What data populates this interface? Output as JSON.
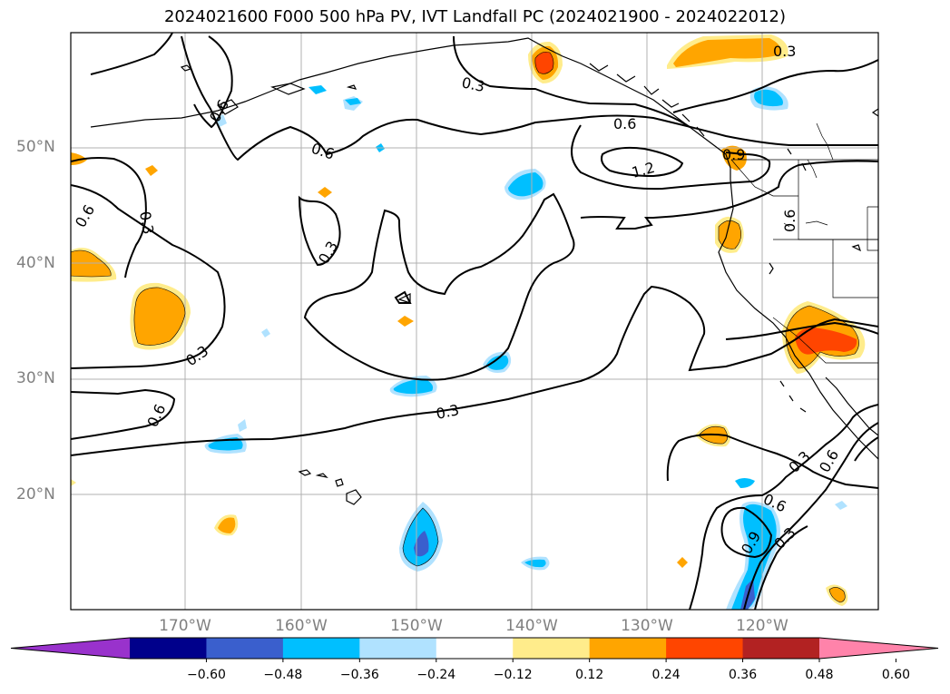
{
  "title": "2024021600 F000 500 hPa PV, IVT Landfall PC (2024021900 - 2024022012)",
  "map": {
    "lat_ticks": [
      "50°N",
      "40°N",
      "30°N",
      "20°N"
    ],
    "lon_ticks": [
      "170°W",
      "160°W",
      "150°W",
      "140°W",
      "130°W",
      "120°W"
    ],
    "contour_labels": [
      "0.3",
      "0.3",
      "0.6",
      "0.6",
      "1.2",
      "0.9",
      "0.6",
      "0.3",
      "0.6",
      "0.3",
      "0.6",
      "0.6",
      "0.3",
      "0.3",
      "0.6",
      "0.9",
      "0.3",
      "0.3",
      "0.6"
    ]
  },
  "colorbar": {
    "ticks": [
      "−0.60",
      "−0.48",
      "−0.36",
      "−0.24",
      "−0.12",
      "0.12",
      "0.24",
      "0.36",
      "0.48",
      "0.60"
    ],
    "colors": [
      "#9932cc",
      "#00008b",
      "#3a5fcd",
      "#00bfff",
      "#b0e2ff",
      "#ffffff",
      "#ffec8b",
      "#ffa500",
      "#ff4500",
      "#b22222",
      "#ff83aa"
    ]
  }
}
